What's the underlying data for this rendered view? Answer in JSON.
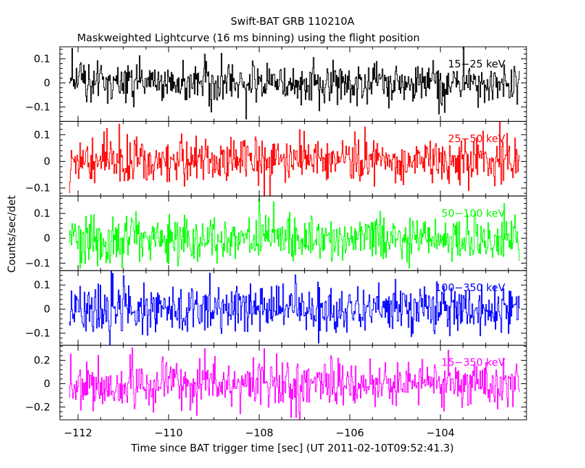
{
  "chart_data": {
    "type": "line",
    "title": "Swift-BAT GRB 110210A",
    "subtitle": "Maskweighted Lightcurve (16 ms binning) using the flight position",
    "xlabel": "Time since BAT trigger time [sec] (UT 2011-02-10T09:52:41.3)",
    "ylabel": "Counts/sec/det",
    "xlim": [
      -112.4,
      -102.1
    ],
    "data_xrange": [
      -112.2,
      -102.25
    ],
    "bin_width_sec": 0.016,
    "x_ticks": [
      -112,
      -110,
      -108,
      -106,
      -104
    ],
    "x_tick_labels": [
      "−112",
      "−110",
      "−108",
      "−106",
      "−104"
    ],
    "grid": false,
    "legend": "none",
    "panels": [
      {
        "name": "15−25 keV",
        "color": "#000000",
        "ylim": [
          -0.16,
          0.15
        ],
        "y_ticks": [
          0.1,
          0,
          -0.1
        ],
        "y_tick_labels": [
          "0.1",
          "0",
          "−0.1"
        ],
        "mean": 0.0,
        "sigma": 0.042,
        "peak_events": [
          {
            "x": -109.2,
            "y": 0.12
          },
          {
            "x": -103.5,
            "y": 0.15
          },
          {
            "x": -108.3,
            "y": -0.15
          }
        ]
      },
      {
        "name": "25−50 keV",
        "color": "#ff0000",
        "ylim": [
          -0.13,
          0.15
        ],
        "y_ticks": [
          0.1,
          0,
          -0.1
        ],
        "y_tick_labels": [
          "0.1",
          "0",
          "−0.1"
        ],
        "mean": 0.0,
        "sigma": 0.045,
        "peak_events": [
          {
            "x": -111.1,
            "y": 0.14
          },
          {
            "x": -102.7,
            "y": 0.15
          },
          {
            "x": -107.9,
            "y": -0.13
          }
        ]
      },
      {
        "name": "50−100 keV",
        "color": "#00ff00",
        "ylim": [
          -0.13,
          0.17
        ],
        "y_ticks": [
          0.1,
          0,
          -0.1
        ],
        "y_tick_labels": [
          "0.1",
          "0",
          "−0.1"
        ],
        "mean": 0.0,
        "sigma": 0.045,
        "peak_events": [
          {
            "x": -108.0,
            "y": 0.16
          },
          {
            "x": -102.6,
            "y": 0.14
          },
          {
            "x": -104.7,
            "y": -0.12
          }
        ]
      },
      {
        "name": "100−350 keV",
        "color": "#0000ff",
        "ylim": [
          -0.15,
          0.16
        ],
        "y_ticks": [
          0.1,
          0,
          -0.1
        ],
        "y_tick_labels": [
          "0.1",
          "0",
          "−0.1"
        ],
        "mean": 0.0,
        "sigma": 0.048,
        "peak_events": [
          {
            "x": -111.0,
            "y": 0.14
          },
          {
            "x": -109.1,
            "y": 0.15
          },
          {
            "x": -111.3,
            "y": -0.15
          }
        ]
      },
      {
        "name": "15−350 keV",
        "color": "#ff00ff",
        "ylim": [
          -0.31,
          0.33
        ],
        "y_ticks": [
          0.2,
          0,
          -0.2
        ],
        "y_tick_labels": [
          "0.2",
          "0",
          "−0.2"
        ],
        "mean": 0.0,
        "sigma": 0.1,
        "peak_events": [
          {
            "x": -109.2,
            "y": 0.3
          },
          {
            "x": -107.9,
            "y": 0.3
          },
          {
            "x": -107.3,
            "y": -0.29
          }
        ]
      }
    ]
  }
}
